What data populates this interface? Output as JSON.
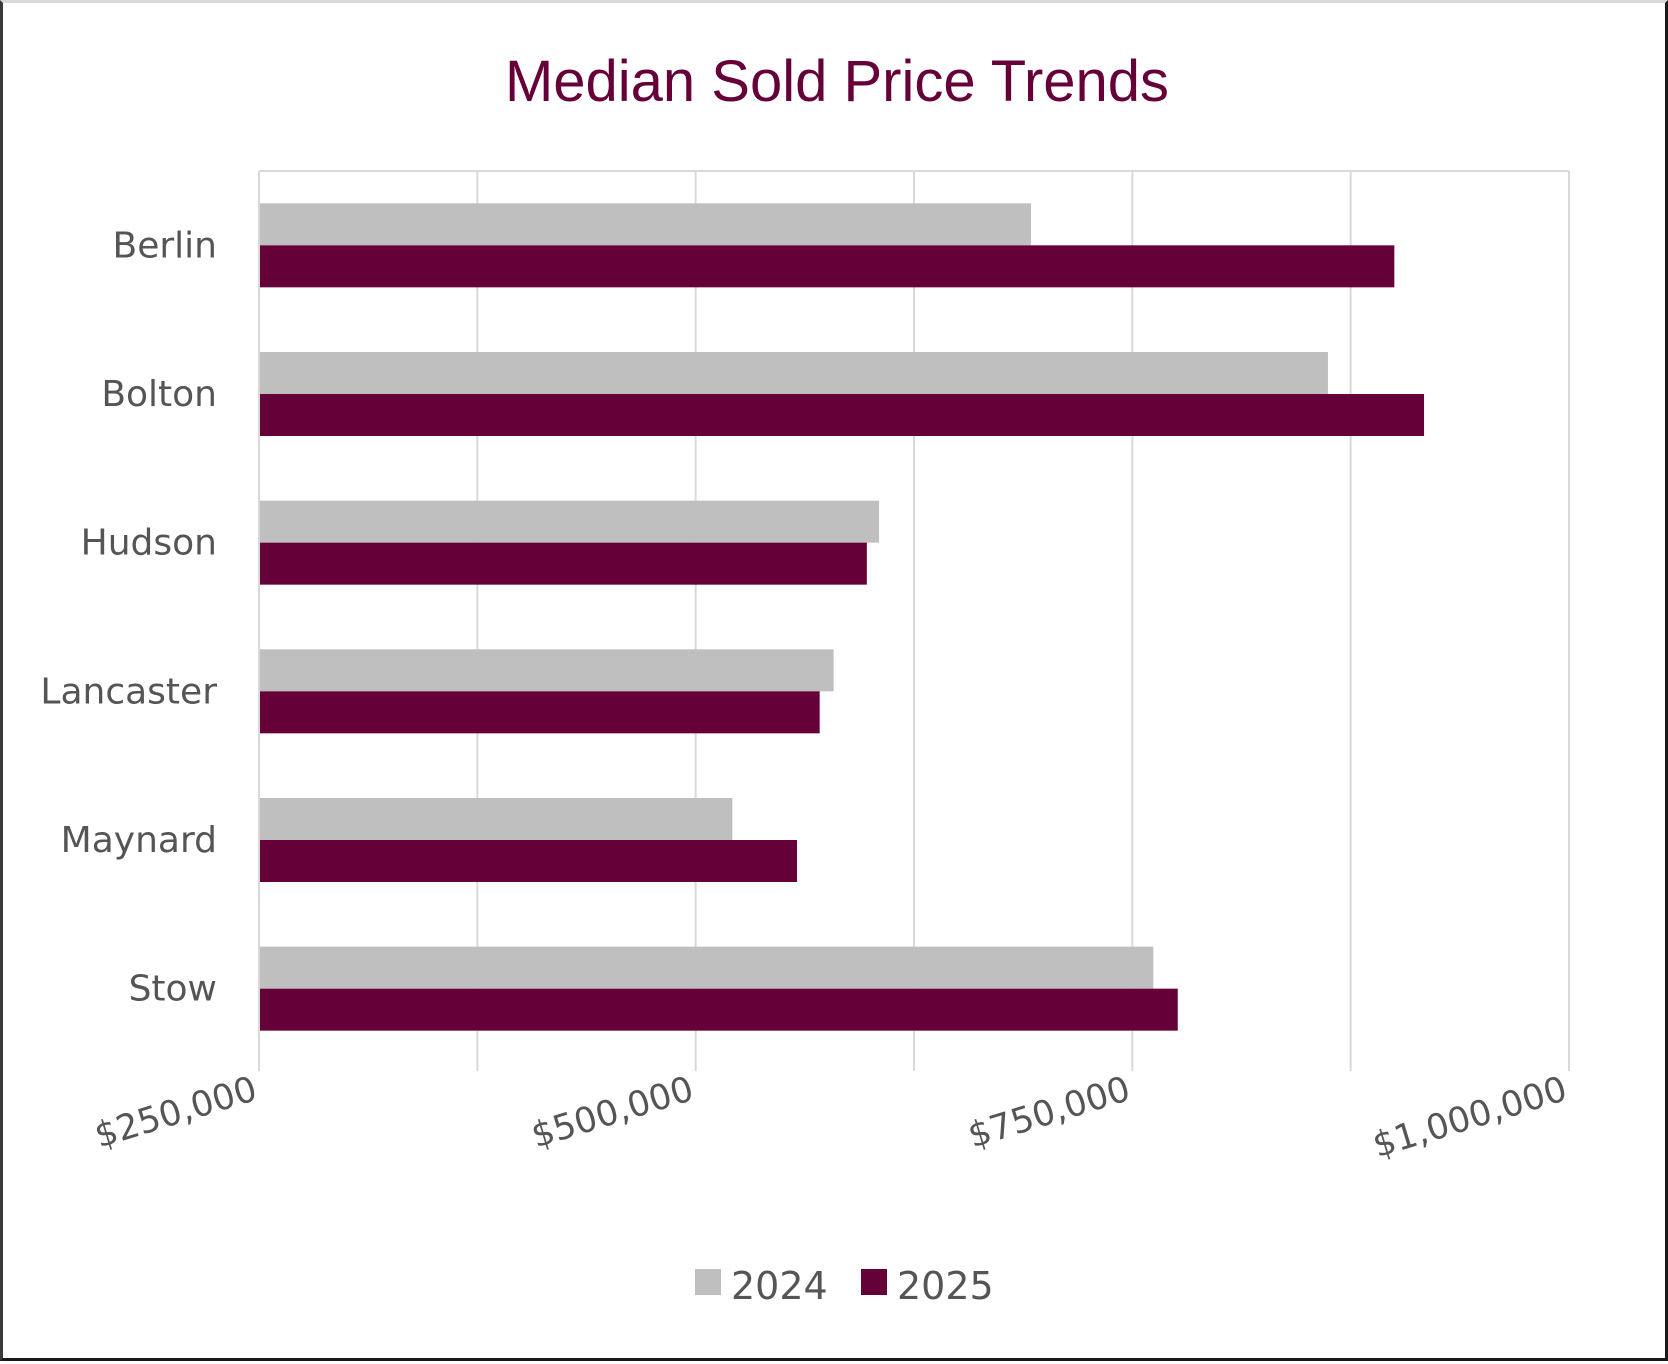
{
  "chart_data": {
    "type": "bar",
    "orientation": "horizontal",
    "title": "Median Sold Price Trends",
    "xlabel": "",
    "ylabel": "",
    "categories": [
      "Berlin",
      "Bolton",
      "Hudson",
      "Lancaster",
      "Maynard",
      "Stow"
    ],
    "series": [
      {
        "name": "2024",
        "color": "#BFBFBF",
        "values": [
          692000,
          862000,
          605000,
          579000,
          521000,
          762000
        ]
      },
      {
        "name": "2025",
        "color": "#660038",
        "values": [
          900000,
          917000,
          598000,
          571000,
          558000,
          776000
        ]
      }
    ],
    "xlim": [
      250000,
      1000000
    ],
    "xticks": [
      250000,
      375000,
      500000,
      625000,
      750000,
      875000,
      1000000
    ],
    "xtick_labels": [
      {
        "value": 250000,
        "label": "$250,000"
      },
      {
        "value": 500000,
        "label": "$500,000"
      },
      {
        "value": 750000,
        "label": "$750,000"
      },
      {
        "value": 1000000,
        "label": "$1,000,000"
      }
    ],
    "grid": true,
    "legend": "bottom"
  }
}
